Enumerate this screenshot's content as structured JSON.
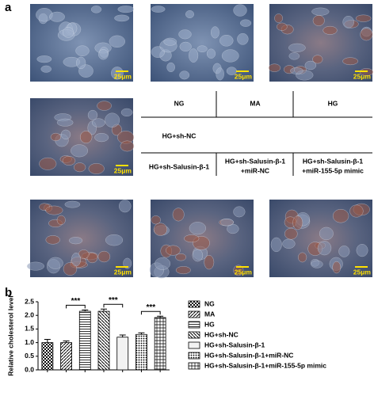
{
  "panel_a": {
    "label": "a",
    "images": [
      {
        "scale": "25μm"
      },
      {
        "scale": "25μm"
      },
      {
        "scale": "25μm"
      },
      {
        "scale": "25μm"
      },
      {
        "scale": "25μm"
      },
      {
        "scale": "25μm"
      },
      {
        "scale": "25μm"
      }
    ],
    "grid": {
      "row1": [
        "NG",
        "MA",
        "HG"
      ],
      "row2": [
        "HG+sh-NC"
      ],
      "row3": [
        [
          "HG+sh-Salusin-β-1"
        ],
        [
          "HG+sh-Salusin-β-1",
          "+miR-NC"
        ],
        [
          "HG+sh-Salusin-β-1",
          "+miR-155-5p mimic"
        ]
      ]
    }
  },
  "panel_b": {
    "label": "b"
  },
  "chart_data": {
    "type": "bar",
    "y_label": "Relative cholesterol level",
    "categories": [
      "NG",
      "MA",
      "HG",
      "HG+sh-NC",
      "HG+sh-Salusin-β-1",
      "HG+sh-Salusin-β-1+miR-NC",
      "HG+sh-Salusin-β-1+miR-155-5p mimic"
    ],
    "values": [
      1.0,
      1.0,
      2.15,
      2.15,
      1.2,
      1.3,
      1.92
    ],
    "errors": [
      0.12,
      0.06,
      0.05,
      0.08,
      0.08,
      0.06,
      0.05
    ],
    "patterns": [
      "checker",
      "diag",
      "hlines",
      "diag2",
      "light",
      "dots",
      "grid"
    ],
    "color": "#000000",
    "ylim": [
      0,
      2.5
    ],
    "yticks": [
      {
        "value": 0,
        "label": "0.0"
      },
      0.5,
      {
        "value": 1,
        "label": "1.0"
      },
      1.5,
      {
        "value": 2,
        "label": "2.0"
      },
      2.5
    ],
    "significance": [
      {
        "label": "***",
        "pair": [
          1,
          2
        ]
      },
      {
        "label": "***",
        "pair": [
          3,
          4
        ]
      },
      {
        "label": "***",
        "pair": [
          5,
          6
        ]
      }
    ]
  }
}
